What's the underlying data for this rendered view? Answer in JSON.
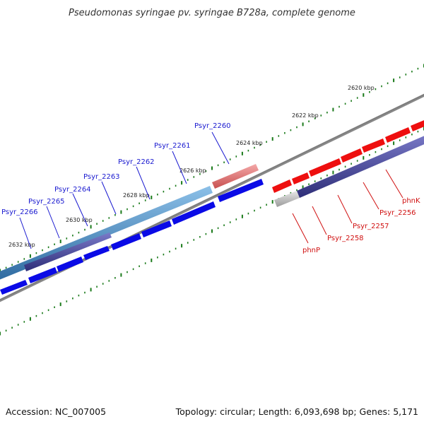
{
  "title": "Pseudomonas syringae pv. syringae B728a, complete genome",
  "footer": {
    "accession": "Accession: NC_007005",
    "stats": "Topology: circular; Length: 6,093,698 bp; Genes: 5,171"
  },
  "colors": {
    "forward_cds": "#0a0ae6",
    "reverse_cds": "#ee0f0f",
    "forward_gene": "#4a88bf",
    "reverse_gene": "#e87878",
    "protein": "#4a4a9a",
    "ruler_ticks": "#1a7a1a",
    "backbone": "#888888"
  },
  "ruler": [
    {
      "label": "2620 kbp"
    },
    {
      "label": "2622 kbp"
    },
    {
      "label": "2624 kbp"
    },
    {
      "label": "2626 kbp"
    },
    {
      "label": "2628 kbp"
    },
    {
      "label": "2630 kbp"
    },
    {
      "label": "2632 kbp"
    }
  ],
  "genes_forward": [
    {
      "label": "Psyr_2266"
    },
    {
      "label": "Psyr_2265"
    },
    {
      "label": "Psyr_2264"
    },
    {
      "label": "Psyr_2263"
    },
    {
      "label": "Psyr_2262"
    },
    {
      "label": "Psyr_2261"
    },
    {
      "label": "Psyr_2260"
    }
  ],
  "genes_reverse": [
    {
      "label": "phnP"
    },
    {
      "label": "Psyr_2258"
    },
    {
      "label": "Psyr_2257"
    },
    {
      "label": "Psyr_2256"
    },
    {
      "label": "phnK"
    }
  ]
}
